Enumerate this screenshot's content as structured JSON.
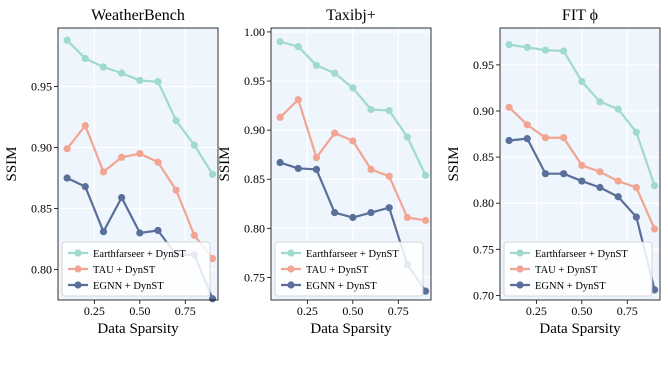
{
  "figure": {
    "xlabel": "Data Sparsity",
    "ylabel": "SSIM"
  },
  "legend_entries": [
    "Earthfarseer + DynST",
    "TAU + DynST",
    "EGNN + DynST"
  ],
  "colors": {
    "plot_bg": "#eef5fc",
    "grid": "#ffffff",
    "Earthfarseer + DynST": "#9fd9cf",
    "TAU + DynST": "#f2a593",
    "EGNN + DynST": "#5a6f99"
  },
  "chart_data": [
    {
      "type": "line",
      "title": "WeatherBench",
      "xlabel": "Data Sparsity",
      "ylabel": "SSIM",
      "xlim": [
        0.05,
        0.93
      ],
      "ylim": [
        0.775,
        0.998
      ],
      "xticks": [
        0.25,
        0.5,
        0.75
      ],
      "xtick_labels": [
        "0.25",
        "0.50",
        "0.75"
      ],
      "yticks": [
        0.8,
        0.85,
        0.9,
        0.95
      ],
      "ytick_labels": [
        "0.80",
        "0.85",
        "0.90",
        "0.95"
      ],
      "legend": "bottom-left",
      "grid": true,
      "x": [
        0.1,
        0.2,
        0.3,
        0.4,
        0.5,
        0.6,
        0.7,
        0.8,
        0.9
      ],
      "series": [
        {
          "name": "Earthfarseer + DynST",
          "values": [
            0.988,
            0.973,
            0.966,
            0.961,
            0.955,
            0.954,
            0.922,
            0.902,
            0.878
          ]
        },
        {
          "name": "TAU + DynST",
          "values": [
            0.899,
            0.918,
            0.88,
            0.892,
            0.895,
            0.888,
            0.865,
            0.828,
            0.809
          ]
        },
        {
          "name": "EGNN + DynST",
          "values": [
            0.875,
            0.868,
            0.831,
            0.859,
            0.83,
            0.832,
            0.812,
            0.812,
            0.776
          ]
        }
      ]
    },
    {
      "type": "line",
      "title": "Taxibj+",
      "xlabel": "Data Sparsity",
      "ylabel": "SSIM",
      "xlim": [
        0.05,
        0.93
      ],
      "ylim": [
        0.727,
        1.004
      ],
      "xticks": [
        0.25,
        0.5,
        0.75
      ],
      "xtick_labels": [
        "0.25",
        "0.50",
        "0.75"
      ],
      "yticks": [
        0.75,
        0.8,
        0.85,
        0.9,
        0.95,
        1.0
      ],
      "ytick_labels": [
        "0.75",
        "0.80",
        "0.85",
        "0.90",
        "0.95",
        "1.00"
      ],
      "legend": "bottom-left",
      "grid": true,
      "x": [
        0.1,
        0.2,
        0.3,
        0.4,
        0.5,
        0.6,
        0.7,
        0.8,
        0.9
      ],
      "series": [
        {
          "name": "Earthfarseer + DynST",
          "values": [
            0.99,
            0.985,
            0.966,
            0.958,
            0.943,
            0.921,
            0.92,
            0.893,
            0.854
          ]
        },
        {
          "name": "TAU + DynST",
          "values": [
            0.913,
            0.931,
            0.872,
            0.897,
            0.889,
            0.86,
            0.853,
            0.811,
            0.808
          ]
        },
        {
          "name": "EGNN + DynST",
          "values": [
            0.867,
            0.861,
            0.86,
            0.816,
            0.811,
            0.816,
            0.821,
            0.763,
            0.736
          ]
        }
      ]
    },
    {
      "type": "line",
      "title": "FIT ϕ",
      "xlabel": "Data Sparsity",
      "ylabel": "SSIM",
      "xlim": [
        0.05,
        0.93
      ],
      "ylim": [
        0.695,
        0.99
      ],
      "xticks": [
        0.25,
        0.5,
        0.75
      ],
      "xtick_labels": [
        "0.25",
        "0.50",
        "0.75"
      ],
      "yticks": [
        0.7,
        0.75,
        0.8,
        0.85,
        0.9,
        0.95
      ],
      "ytick_labels": [
        "0.70",
        "0.75",
        "0.80",
        "0.85",
        "0.90",
        "0.95"
      ],
      "legend": "bottom-left",
      "grid": true,
      "x": [
        0.1,
        0.2,
        0.3,
        0.4,
        0.5,
        0.6,
        0.7,
        0.8,
        0.9
      ],
      "series": [
        {
          "name": "Earthfarseer + DynST",
          "values": [
            0.972,
            0.969,
            0.966,
            0.965,
            0.932,
            0.91,
            0.902,
            0.877,
            0.819
          ]
        },
        {
          "name": "TAU + DynST",
          "values": [
            0.904,
            0.885,
            0.871,
            0.871,
            0.841,
            0.834,
            0.824,
            0.817,
            0.772
          ]
        },
        {
          "name": "EGNN + DynST",
          "values": [
            0.868,
            0.87,
            0.832,
            0.832,
            0.824,
            0.817,
            0.807,
            0.785,
            0.706
          ]
        }
      ]
    }
  ]
}
